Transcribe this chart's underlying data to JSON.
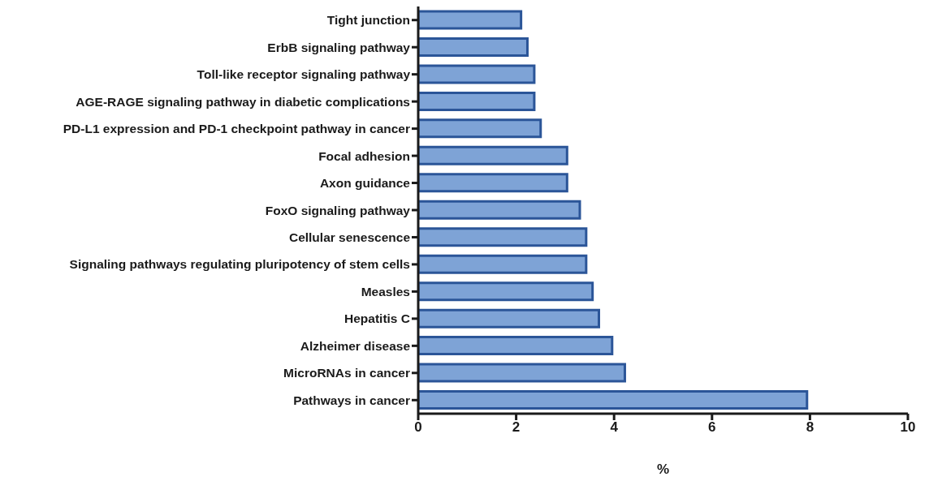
{
  "chart_data": {
    "type": "bar",
    "orientation": "horizontal",
    "xlabel": "%",
    "categories": [
      "Tight junction",
      "ErbB signaling pathway",
      "Toll-like receptor signaling pathway",
      "AGE-RAGE signaling pathway in diabetic complications",
      "PD-L1 expression and PD-1 checkpoint pathway in cancer",
      "Focal adhesion",
      "Axon guidance",
      "FoxO signaling pathway",
      "Cellular senescence",
      "Signaling pathways regulating pluripotency of stem cells",
      "Measles",
      "Hepatitis C",
      "Alzheimer disease",
      "MicroRNAs in cancer",
      "Pathways in cancer"
    ],
    "values": [
      2.1,
      2.23,
      2.37,
      2.37,
      2.5,
      3.04,
      3.04,
      3.3,
      3.43,
      3.43,
      3.56,
      3.69,
      3.96,
      4.22,
      7.94
    ],
    "color": "#7ea3d6",
    "xlim": [
      0,
      10
    ],
    "xticks": [
      0,
      2,
      4,
      6,
      8,
      10
    ],
    "grid": false
  }
}
